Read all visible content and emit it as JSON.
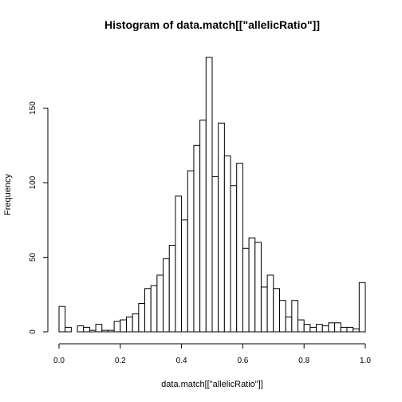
{
  "chart_data": {
    "type": "bar",
    "title": "Histogram of data.match[[\"allelicRatio\"]]",
    "xlabel": "data.match[[\"allelicRatio\"]]",
    "ylabel": "Frequency",
    "bin_start": 0.0,
    "bin_width": 0.02,
    "values": [
      17,
      3,
      0,
      4,
      3,
      1,
      5,
      1,
      1,
      7,
      8,
      10,
      12,
      19,
      29,
      31,
      38,
      49,
      58,
      91,
      75,
      108,
      125,
      142,
      184,
      104,
      140,
      118,
      98,
      113,
      56,
      63,
      60,
      30,
      38,
      29,
      21,
      10,
      21,
      8,
      5,
      3,
      5,
      4,
      6,
      6,
      3,
      3,
      2,
      33
    ],
    "xlim": [
      0,
      1
    ],
    "ylim": [
      0,
      184
    ],
    "x_ticks": [
      0.0,
      0.2,
      0.4,
      0.6,
      0.8,
      1.0
    ],
    "x_tick_labels": [
      "0.0",
      "0.2",
      "0.4",
      "0.6",
      "0.8",
      "1.0"
    ],
    "y_ticks": [
      0,
      50,
      100,
      150
    ],
    "y_tick_labels": [
      "0",
      "50",
      "100",
      "150"
    ],
    "grid": false
  }
}
